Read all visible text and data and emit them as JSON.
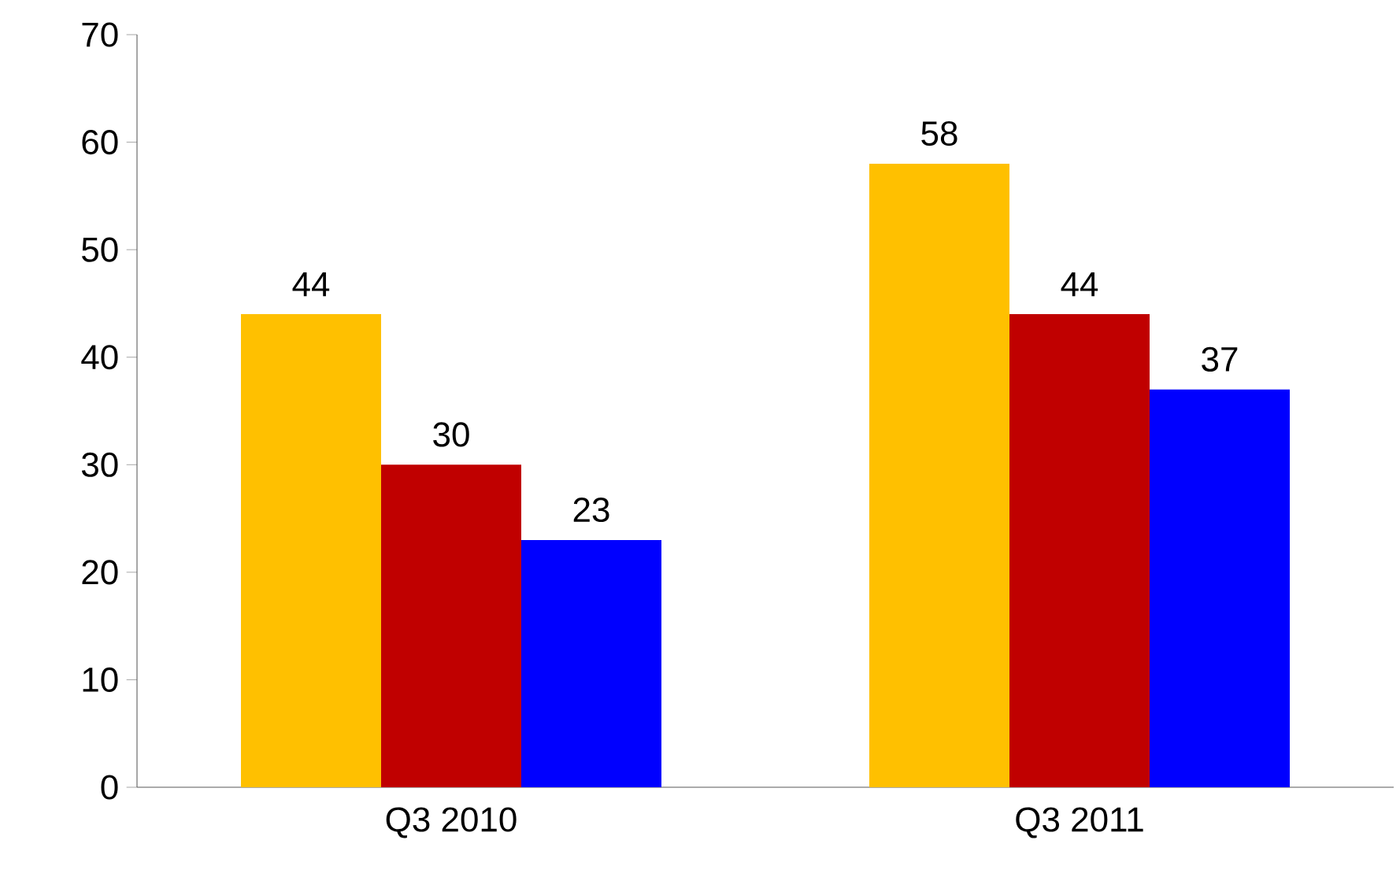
{
  "chart_data": {
    "type": "bar",
    "categories": [
      "Q3 2010",
      "Q3 2011"
    ],
    "series": [
      {
        "color": "#ffc000",
        "values": [
          44,
          58
        ]
      },
      {
        "color": "#c00000",
        "values": [
          30,
          44
        ]
      },
      {
        "color": "#0000ff",
        "values": [
          23,
          37
        ]
      }
    ],
    "ylim": [
      0,
      70
    ],
    "yticks": [
      0,
      10,
      20,
      30,
      40,
      50,
      60,
      70
    ],
    "data_labels": true
  }
}
